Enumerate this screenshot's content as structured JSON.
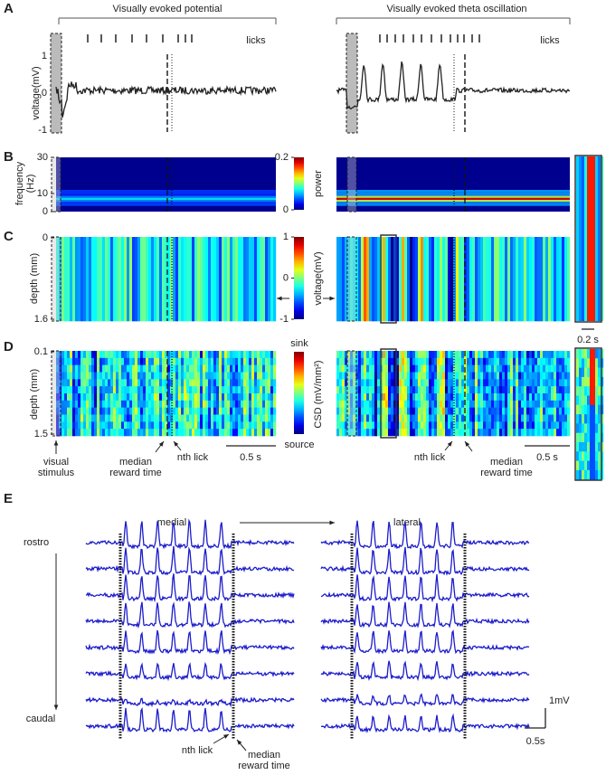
{
  "panels": {
    "A": {
      "label": "A",
      "left_title": "Visually evoked potential",
      "right_title": "Visually evoked theta oscillation",
      "licks_left": "licks",
      "licks_right": "licks",
      "ylabel": "voltage(mV)",
      "ylim": [
        -1,
        1
      ],
      "yticks": [
        1,
        0,
        -1
      ]
    },
    "B": {
      "label": "B",
      "ylabel": [
        "frequency",
        "(Hz)"
      ],
      "ylim": [
        0,
        30
      ],
      "yticks": [
        30,
        10,
        0
      ],
      "colorbar_label": "power",
      "colorbar_lim": [
        0,
        0.2
      ],
      "colorbar_ticks": [
        0.2,
        0
      ]
    },
    "C": {
      "label": "C",
      "ylabel": "depth (mm)",
      "ylim": [
        0,
        1.6
      ],
      "yticks": [
        0,
        1.6
      ],
      "colorbar_label": "voltage(mV)",
      "colorbar_lim": [
        -1,
        1
      ],
      "colorbar_ticks": [
        1,
        0,
        -1
      ],
      "inset_scale": "0.2 s"
    },
    "D": {
      "label": "D",
      "ylabel": "depth (mm)",
      "ylim": [
        0.1,
        1.5
      ],
      "yticks": [
        0.1,
        1.5
      ],
      "colorbar_top": "sink",
      "colorbar_bottom": "source",
      "colorbar_label": "CSD (mV/mm²)",
      "visual_stimulus": [
        "visual",
        "stimulus"
      ],
      "median_reward_left": [
        "median",
        "reward time"
      ],
      "nth_lick_left": "nth lick",
      "scale_left": "0.5 s",
      "nth_lick_right": "nth lick",
      "median_reward_right": [
        "median",
        "reward time"
      ],
      "scale_right": "0.5 s"
    },
    "E": {
      "label": "E",
      "medial": "medial",
      "lateral": "lateral",
      "rostro": "rostro",
      "caudal": "caudal",
      "nth_lick": "nth lick",
      "median_reward": [
        "median",
        "reward time"
      ],
      "scale_v": "1mV",
      "scale_t": "0.5s"
    }
  }
}
